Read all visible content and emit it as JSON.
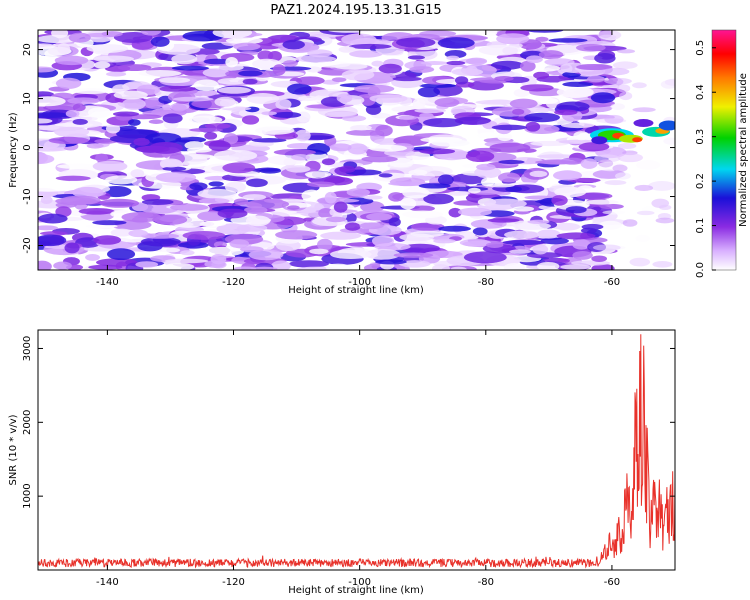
{
  "figure": {
    "title": "PAZ1.2024.195.13.31.G15"
  },
  "chart_data": [
    {
      "type": "heatmap",
      "xlabel": "Height of straight line (km)",
      "ylabel": "Frequency (Hz)",
      "xlim": [
        -151,
        -50
      ],
      "ylim": [
        -25,
        24
      ],
      "xticks": [
        -140,
        -120,
        -100,
        -80,
        -60
      ],
      "yticks": [
        -20,
        -10,
        0,
        10,
        20
      ],
      "grid": false,
      "colorbar": {
        "label": "Normalized spectral amplitude",
        "range": [
          0.0,
          0.54
        ],
        "ticks": [
          0.0,
          0.1,
          0.2,
          0.3,
          0.4,
          0.5
        ]
      },
      "colorscale": "rainbow (white → violet → purple → blue → cyan → green → yellow → orange → red → magenta)",
      "description_values": {
        "background_level": "0.0–0.12 scattered noise across -151 to -62 km",
        "peak_region_x": [
          -62,
          -50
        ],
        "peak_region_y_hz": [
          1,
          5
        ],
        "peak_amplitude": 0.45
      }
    },
    {
      "type": "line",
      "xlabel": "Height of straight line (km)",
      "ylabel": "SNR (10 * v/v)",
      "xlim": [
        -151,
        -50
      ],
      "ylim": [
        0,
        3250
      ],
      "xticks": [
        -140,
        -120,
        -100,
        -80,
        -60
      ],
      "yticks": [
        1000,
        2000,
        3000
      ],
      "grid": false,
      "series": [
        {
          "color": "#e8312a",
          "points": [
            [
              -151,
              110
            ],
            [
              -148,
              80
            ],
            [
              -145,
              120
            ],
            [
              -140,
              100
            ],
            [
              -135,
              140
            ],
            [
              -130,
              90
            ],
            [
              -125,
              130
            ],
            [
              -120,
              180
            ],
            [
              -115,
              110
            ],
            [
              -110,
              120
            ],
            [
              -105,
              100
            ],
            [
              -100,
              130
            ],
            [
              -95,
              90
            ],
            [
              -90,
              140
            ],
            [
              -85,
              110
            ],
            [
              -80,
              120
            ],
            [
              -75,
              100
            ],
            [
              -70,
              130
            ],
            [
              -65,
              110
            ],
            [
              -62,
              140
            ],
            [
              -61,
              300
            ],
            [
              -60,
              470
            ],
            [
              -59.5,
              350
            ],
            [
              -59,
              680
            ],
            [
              -58.5,
              400
            ],
            [
              -58,
              900
            ],
            [
              -57.5,
              1150
            ],
            [
              -57,
              650
            ],
            [
              -56.5,
              1600
            ],
            [
              -56,
              2650
            ],
            [
              -55.8,
              900
            ],
            [
              -55.5,
              3250
            ],
            [
              -55.2,
              1200
            ],
            [
              -55,
              2900
            ],
            [
              -54.5,
              1800
            ],
            [
              -54,
              700
            ],
            [
              -53.5,
              1400
            ],
            [
              -53,
              900
            ],
            [
              -52.5,
              1350
            ],
            [
              -52,
              700
            ],
            [
              -51.5,
              1050
            ],
            [
              -51,
              900
            ],
            [
              -50.5,
              1200
            ],
            [
              -50,
              1000
            ]
          ]
        }
      ]
    }
  ]
}
